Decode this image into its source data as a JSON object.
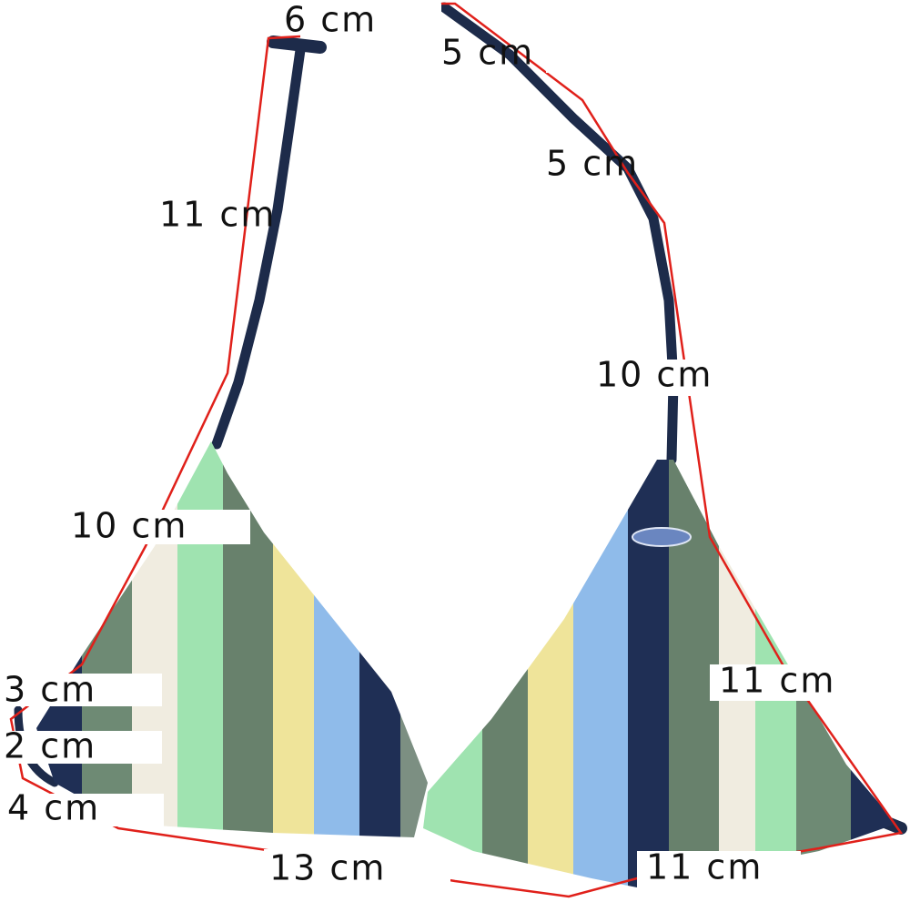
{
  "labels": [
    "6 cm",
    "5 cm",
    "5 cm",
    "11 cm",
    "10 cm",
    "10 cm",
    "3 cm",
    "2 cm",
    "4 cm",
    "11 cm",
    "13 cm",
    "11 cm"
  ]
}
